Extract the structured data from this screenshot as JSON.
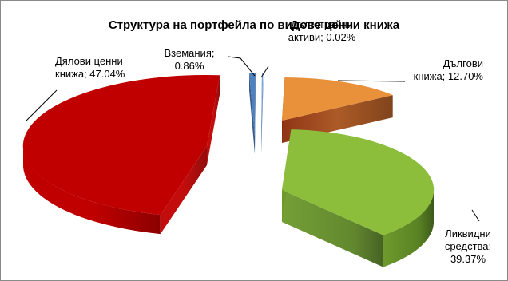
{
  "chart_data": {
    "type": "pie",
    "title": "Структура на портфейла по видове ценни книжа",
    "series": [
      {
        "name": "Дялови ценни книжа",
        "value": 47.04,
        "label_lines": [
          "Дялови ценни",
          "книжа; 47.04%"
        ],
        "color": "#c00000"
      },
      {
        "name": "Вземания",
        "value": 0.86,
        "label_lines": [
          "Вземания;",
          "0.86%"
        ],
        "color": "#4f81bd"
      },
      {
        "name": "Дълготрайни активи",
        "value": 0.02,
        "label_lines": [
          "Дълготрайни",
          "активи; 0.02%"
        ],
        "color": "#7aa3d6"
      },
      {
        "name": "Дългови книжа",
        "value": 12.7,
        "label_lines": [
          "Дългови",
          "книжа; 12.70%"
        ],
        "color": "#e8913a"
      },
      {
        "name": "Ликвидни средства",
        "value": 39.37,
        "label_lines": [
          "Ликвидни",
          "средства;",
          "39.37%"
        ],
        "color": "#8cbe3c"
      }
    ],
    "style": "3d-exploded"
  }
}
